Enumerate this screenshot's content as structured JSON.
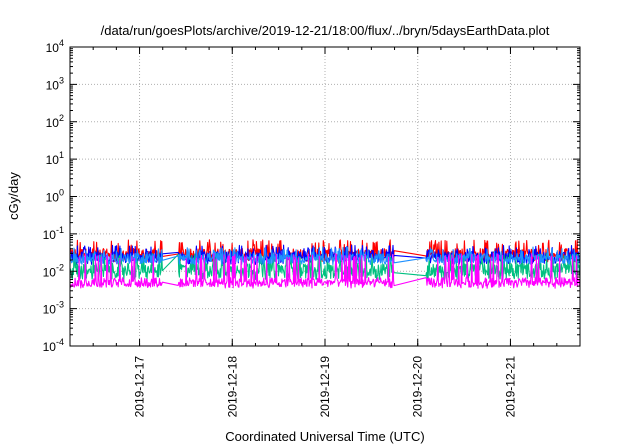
{
  "chart_data": {
    "type": "line",
    "title": "/data/run/goesPlots/archive/2019-12-21/18:00/flux/../bryn/5daysEarthData.plot",
    "xlabel": "Coordinated Universal Time (UTC)",
    "ylabel": "cGy/day",
    "y_scale": "log",
    "ylim": [
      0.0001,
      10000
    ],
    "xlim": [
      "2019-12-16 06:00",
      "2019-12-21 18:00"
    ],
    "x_ticks": [
      "2019-12-17",
      "2019-12-18",
      "2019-12-19",
      "2019-12-20",
      "2019-12-21"
    ],
    "y_ticks": [
      {
        "base": "10",
        "exp": "4"
      },
      {
        "base": "10",
        "exp": "3"
      },
      {
        "base": "10",
        "exp": "2"
      },
      {
        "base": "10",
        "exp": "1"
      },
      {
        "base": "10",
        "exp": "0"
      },
      {
        "base": "10",
        "exp": "-1"
      },
      {
        "base": "10",
        "exp": "-2"
      },
      {
        "base": "10",
        "exp": "-3"
      },
      {
        "base": "10",
        "exp": "-4"
      }
    ],
    "grid": true,
    "legend": "none",
    "gaps": [
      [
        "2019-12-17 06:00",
        "2019-12-17 10:00"
      ],
      [
        "2019-12-19 18:00",
        "2019-12-20 02:00"
      ]
    ],
    "series": [
      {
        "color": "#ff0000",
        "low": 0.018,
        "high": 0.07,
        "baseline": 0.03
      },
      {
        "color": "#0000ff",
        "low": 0.015,
        "high": 0.05,
        "baseline": 0.025
      },
      {
        "color": "#00c080",
        "low": 0.006,
        "high": 0.03,
        "baseline": 0.012
      },
      {
        "color": "#1e90ff",
        "low": 0.015,
        "high": 0.045,
        "baseline": 0.022
      },
      {
        "color": "#ff00ff",
        "low": 0.0035,
        "high": 0.03,
        "baseline": 0.005
      }
    ]
  }
}
